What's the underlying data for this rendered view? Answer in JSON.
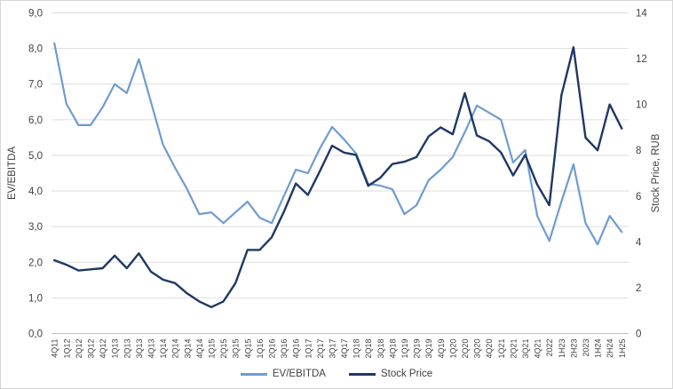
{
  "chart_data": {
    "type": "line",
    "title": "",
    "categories": [
      "4Q11",
      "1Q12",
      "2Q12",
      "3Q12",
      "4Q12",
      "1Q13",
      "2Q13",
      "3Q13",
      "4Q13",
      "1Q14",
      "2Q14",
      "3Q14",
      "4Q14",
      "1Q15",
      "2Q15",
      "3Q15",
      "4Q15",
      "1Q16",
      "2Q16",
      "3Q16",
      "4Q16",
      "1Q17",
      "2Q17",
      "3Q17",
      "4Q17",
      "1Q18",
      "2Q18",
      "3Q18",
      "4Q18",
      "1Q19",
      "2Q19",
      "3Q19",
      "4Q19",
      "1Q20",
      "2Q20",
      "3Q20",
      "4Q20",
      "1Q21",
      "2Q21",
      "3Q21",
      "4Q21",
      "2022",
      "1H23",
      "2H23",
      "2023",
      "1H24",
      "2H24",
      "1H25"
    ],
    "series": [
      {
        "name": "EV/EBITDA",
        "axis": "left",
        "color": "#6f9bd2",
        "values": [
          8.15,
          6.45,
          5.85,
          5.85,
          6.35,
          7.0,
          6.75,
          7.7,
          6.5,
          5.3,
          4.65,
          4.05,
          3.35,
          3.4,
          3.1,
          3.4,
          3.7,
          3.25,
          3.1,
          3.85,
          4.6,
          4.5,
          5.2,
          5.8,
          5.45,
          5.05,
          4.2,
          4.15,
          4.05,
          3.35,
          3.6,
          4.3,
          4.6,
          4.95,
          5.65,
          6.4,
          6.2,
          6.0,
          4.8,
          5.15,
          3.3,
          2.6,
          3.7,
          4.75,
          3.1,
          2.5,
          3.3,
          2.85
        ]
      },
      {
        "name": "Stock Price",
        "axis": "right",
        "color": "#1f3864",
        "values": [
          3.2,
          3.0,
          2.75,
          2.8,
          2.85,
          3.4,
          2.85,
          3.5,
          2.7,
          2.35,
          2.2,
          1.75,
          1.4,
          1.15,
          1.4,
          2.2,
          3.65,
          3.65,
          4.2,
          5.3,
          6.55,
          6.05,
          7.1,
          8.2,
          7.9,
          7.8,
          6.45,
          6.8,
          7.4,
          7.5,
          7.7,
          8.6,
          9.0,
          8.7,
          10.5,
          8.65,
          8.4,
          7.9,
          6.9,
          7.8,
          6.5,
          5.6,
          10.4,
          12.5,
          8.55,
          8.0,
          10.0,
          8.95
        ]
      }
    ],
    "left_axis": {
      "title": "EV/EBITDA",
      "range": [
        0,
        9
      ],
      "tick_step": 1,
      "tick_labels": [
        "0,0",
        "1,0",
        "2,0",
        "3,0",
        "4,0",
        "5,0",
        "6,0",
        "7,0",
        "8,0",
        "9,0"
      ]
    },
    "right_axis": {
      "title": "Stock Price, RUB",
      "range": [
        0,
        14
      ],
      "tick_step": 2,
      "tick_labels": [
        "0",
        "2",
        "4",
        "6",
        "8",
        "10",
        "12",
        "14"
      ]
    },
    "grid": true,
    "legend_position": "bottom",
    "colors": {
      "gridline": "#dedede",
      "axis_line": "#bfbfbf",
      "text": "#404040"
    }
  }
}
